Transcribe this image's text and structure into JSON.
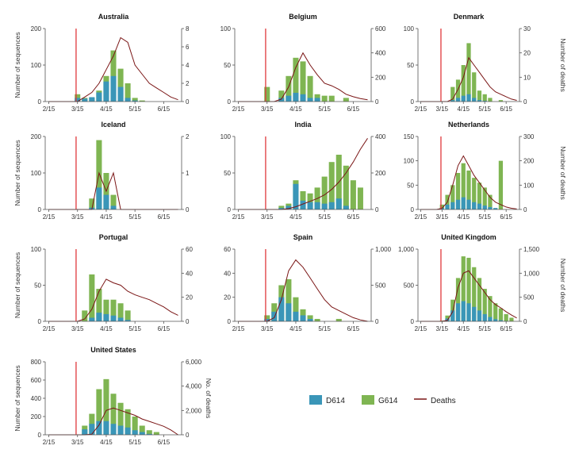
{
  "colors": {
    "d614": "#3a96b8",
    "g614": "#7fb552",
    "deaths": "#7a1515",
    "marker": "#e0393c",
    "axis": "#555555"
  },
  "labels": {
    "y_left": "Number of sequences",
    "y_right": "Number of deaths",
    "y_right_us": "No. of deaths"
  },
  "legend": {
    "d614": "D614",
    "g614": "G614",
    "deaths": "Deaths"
  },
  "chart_data": [
    {
      "type": "bar+line",
      "title": "Australia",
      "x_ticks": [
        "2/15",
        "3/15",
        "4/15",
        "5/15",
        "6/15"
      ],
      "ylim_left": [
        0,
        200
      ],
      "yticks_left": [
        "0",
        "100",
        "200"
      ],
      "ylim_right": [
        0,
        8
      ],
      "yticks_right": [
        "0",
        "2",
        "4",
        "6",
        "8"
      ],
      "marker_week": 4.3,
      "d614": [
        0,
        0,
        0,
        0,
        10,
        8,
        12,
        25,
        55,
        70,
        40,
        10,
        3,
        0,
        0,
        0,
        0,
        0,
        0
      ],
      "g614": [
        0,
        0,
        0,
        0,
        20,
        10,
        10,
        30,
        70,
        140,
        90,
        50,
        10,
        3,
        0,
        0,
        0,
        0,
        0
      ],
      "deaths": [
        0,
        0,
        0,
        0,
        0,
        0.5,
        1,
        2,
        3.5,
        5,
        7,
        6.5,
        4,
        3,
        2,
        1.5,
        1,
        0.5,
        0.2
      ]
    },
    {
      "type": "bar+line",
      "title": "Belgium",
      "x_ticks": [
        "2/15",
        "3/15",
        "4/15",
        "5/15",
        "6/15"
      ],
      "ylim_left": [
        0,
        100
      ],
      "yticks_left": [
        "0",
        "50",
        "100"
      ],
      "ylim_right": [
        0,
        600
      ],
      "yticks_right": [
        "0",
        "200",
        "400",
        "600"
      ],
      "marker_week": 4.3,
      "d614": [
        0,
        0,
        0,
        0,
        0,
        0,
        5,
        8,
        12,
        10,
        5,
        5,
        0,
        0,
        0,
        0,
        0,
        0,
        0
      ],
      "g614": [
        0,
        0,
        0,
        0,
        20,
        0,
        15,
        35,
        60,
        55,
        35,
        10,
        8,
        8,
        0,
        5,
        0,
        0,
        0
      ],
      "deaths": [
        0,
        0,
        0,
        0,
        0,
        0,
        20,
        120,
        280,
        400,
        300,
        220,
        150,
        130,
        100,
        60,
        40,
        25,
        15
      ]
    },
    {
      "type": "bar+line",
      "title": "Denmark",
      "x_ticks": [
        "2/15",
        "3/15",
        "4/15",
        "5/15",
        "6/15"
      ],
      "ylim_left": [
        0,
        100
      ],
      "yticks_left": [
        "0",
        "50",
        "100"
      ],
      "ylim_right": [
        0,
        30
      ],
      "yticks_right": [
        "0",
        "10",
        "20",
        "30"
      ],
      "marker_week": 4.3,
      "d614": [
        0,
        0,
        0,
        0,
        0,
        0,
        2,
        5,
        8,
        10,
        5,
        2,
        1,
        0,
        0,
        0,
        0,
        0,
        0
      ],
      "g614": [
        0,
        0,
        0,
        0,
        0,
        0,
        20,
        30,
        50,
        80,
        40,
        15,
        10,
        5,
        0,
        2,
        0,
        0,
        0
      ],
      "deaths": [
        0,
        0,
        0,
        0,
        0,
        0,
        1,
        5,
        10,
        18,
        15,
        12,
        9,
        6,
        4,
        3,
        2,
        1,
        0.5
      ]
    },
    {
      "type": "bar+line",
      "title": "Iceland",
      "x_ticks": [
        "2/15",
        "3/15",
        "4/15",
        "5/15",
        "6/15"
      ],
      "ylim_left": [
        0,
        200
      ],
      "yticks_left": [
        "0",
        "100",
        "200"
      ],
      "ylim_right": [
        0,
        2
      ],
      "yticks_right": [
        "0",
        "1",
        "2"
      ],
      "marker_week": 4.3,
      "d614": [
        0,
        0,
        0,
        0,
        0,
        0,
        5,
        60,
        40,
        10,
        0,
        0,
        0,
        0,
        0,
        0,
        0,
        0,
        0
      ],
      "g614": [
        0,
        0,
        0,
        0,
        0,
        0,
        30,
        190,
        100,
        40,
        0,
        0,
        0,
        0,
        0,
        0,
        0,
        0,
        0
      ],
      "deaths": [
        0,
        0,
        0,
        0,
        0,
        0,
        0,
        1,
        0.5,
        1,
        0,
        0,
        0,
        0,
        0,
        0,
        0,
        0,
        0
      ]
    },
    {
      "type": "bar+line",
      "title": "India",
      "x_ticks": [
        "2/15",
        "3/15",
        "4/15",
        "5/15",
        "6/15"
      ],
      "ylim_left": [
        0,
        100
      ],
      "yticks_left": [
        "0",
        "50",
        "100"
      ],
      "ylim_right": [
        0,
        400
      ],
      "yticks_right": [
        "0",
        "200",
        "400"
      ],
      "marker_week": 4.3,
      "d614": [
        0,
        0,
        0,
        0,
        0,
        0,
        2,
        5,
        35,
        12,
        10,
        10,
        8,
        10,
        15,
        5,
        0,
        0,
        0
      ],
      "g614": [
        0,
        0,
        0,
        0,
        0,
        0,
        5,
        8,
        40,
        25,
        22,
        30,
        45,
        65,
        75,
        60,
        40,
        30,
        0
      ],
      "deaths": [
        0,
        0,
        0,
        0,
        0,
        0,
        0,
        5,
        15,
        30,
        45,
        60,
        80,
        110,
        150,
        200,
        260,
        330,
        390
      ]
    },
    {
      "type": "bar+line",
      "title": "Netherlands",
      "x_ticks": [
        "2/15",
        "3/15",
        "4/15",
        "5/15",
        "6/15"
      ],
      "ylim_left": [
        0,
        150
      ],
      "yticks_left": [
        "0",
        "50",
        "100",
        "150"
      ],
      "ylim_right": [
        0,
        300
      ],
      "yticks_right": [
        "0",
        "100",
        "200",
        "300"
      ],
      "marker_week": 4.3,
      "d614": [
        0,
        0,
        0,
        0,
        3,
        10,
        15,
        20,
        25,
        20,
        15,
        12,
        8,
        5,
        3,
        0,
        0,
        0,
        0
      ],
      "g614": [
        0,
        0,
        0,
        0,
        10,
        30,
        50,
        75,
        95,
        80,
        65,
        55,
        45,
        30,
        0,
        100,
        0,
        0,
        0
      ],
      "deaths": [
        0,
        0,
        0,
        0,
        5,
        30,
        100,
        180,
        220,
        180,
        140,
        110,
        80,
        50,
        30,
        20,
        10,
        5,
        2
      ]
    },
    {
      "type": "bar+line",
      "title": "Portugal",
      "x_ticks": [
        "2/15",
        "3/15",
        "4/15",
        "5/15",
        "6/15"
      ],
      "ylim_left": [
        0,
        100
      ],
      "yticks_left": [
        "0",
        "50",
        "100"
      ],
      "ylim_right": [
        0,
        60
      ],
      "yticks_right": [
        "0",
        "20",
        "40",
        "60"
      ],
      "marker_week": 4.3,
      "d614": [
        0,
        0,
        0,
        0,
        0,
        0,
        5,
        12,
        10,
        8,
        5,
        2,
        0,
        0,
        0,
        0,
        0,
        0,
        0
      ],
      "g614": [
        0,
        0,
        0,
        0,
        0,
        15,
        65,
        45,
        30,
        30,
        25,
        15,
        0,
        0,
        0,
        0,
        0,
        0,
        0
      ],
      "deaths": [
        0,
        0,
        0,
        0,
        0,
        2,
        10,
        25,
        35,
        32,
        30,
        25,
        22,
        20,
        18,
        15,
        12,
        8,
        5
      ]
    },
    {
      "type": "bar+line",
      "title": "Spain",
      "x_ticks": [
        "2/15",
        "3/15",
        "4/15",
        "5/15",
        "6/15"
      ],
      "ylim_left": [
        0,
        60
      ],
      "yticks_left": [
        "0",
        "20",
        "40",
        "60"
      ],
      "ylim_right": [
        0,
        1000
      ],
      "yticks_right": [
        "0",
        "500",
        "1,000"
      ],
      "marker_week": 4.3,
      "d614": [
        0,
        0,
        0,
        0,
        2,
        8,
        20,
        15,
        8,
        5,
        2,
        0,
        0,
        0,
        0,
        0,
        0,
        0,
        0
      ],
      "g614": [
        0,
        0,
        0,
        0,
        5,
        15,
        30,
        35,
        20,
        10,
        5,
        2,
        0,
        0,
        2,
        0,
        0,
        0,
        0
      ],
      "deaths": [
        0,
        0,
        0,
        0,
        0,
        50,
        300,
        700,
        850,
        750,
        600,
        450,
        300,
        200,
        150,
        100,
        50,
        20,
        0
      ]
    },
    {
      "type": "bar+line",
      "title": "United Kingdom",
      "x_ticks": [
        "2/15",
        "3/15",
        "4/15",
        "5/15",
        "6/15"
      ],
      "ylim_left": [
        0,
        1000
      ],
      "yticks_left": [
        "0",
        "500",
        "1,000"
      ],
      "ylim_right": [
        0,
        1500
      ],
      "yticks_right": [
        "0",
        "500",
        "1,000",
        "1,500"
      ],
      "marker_week": 4.3,
      "d614": [
        0,
        0,
        0,
        0,
        5,
        40,
        150,
        250,
        280,
        250,
        200,
        150,
        100,
        60,
        30,
        15,
        5,
        0,
        0
      ],
      "g614": [
        0,
        0,
        0,
        0,
        10,
        80,
        300,
        600,
        900,
        880,
        750,
        600,
        450,
        350,
        250,
        180,
        100,
        50,
        0
      ],
      "deaths": [
        0,
        0,
        0,
        0,
        0,
        20,
        200,
        700,
        1000,
        1050,
        900,
        750,
        600,
        450,
        350,
        280,
        200,
        130,
        70
      ]
    },
    {
      "type": "bar+line",
      "title": "United States",
      "x_ticks": [
        "2/15",
        "3/15",
        "4/15",
        "5/15",
        "6/15"
      ],
      "ylim_left": [
        0,
        800
      ],
      "yticks_left": [
        "0",
        "200",
        "400",
        "600",
        "800"
      ],
      "ylim_right": [
        0,
        6000
      ],
      "yticks_right": [
        "0",
        "2,000",
        "4,000",
        "6,000"
      ],
      "marker_week": 4.3,
      "d614": [
        0,
        0,
        0,
        0,
        0,
        60,
        120,
        150,
        150,
        120,
        100,
        80,
        50,
        30,
        10,
        0,
        0,
        0,
        0
      ],
      "g614": [
        0,
        0,
        0,
        0,
        0,
        100,
        230,
        500,
        610,
        450,
        350,
        280,
        200,
        100,
        50,
        30,
        0,
        0,
        0
      ],
      "deaths": [
        0,
        0,
        0,
        0,
        0,
        0,
        50,
        800,
        2000,
        2200,
        2000,
        1800,
        1600,
        1300,
        1100,
        900,
        700,
        400,
        0
      ]
    }
  ]
}
